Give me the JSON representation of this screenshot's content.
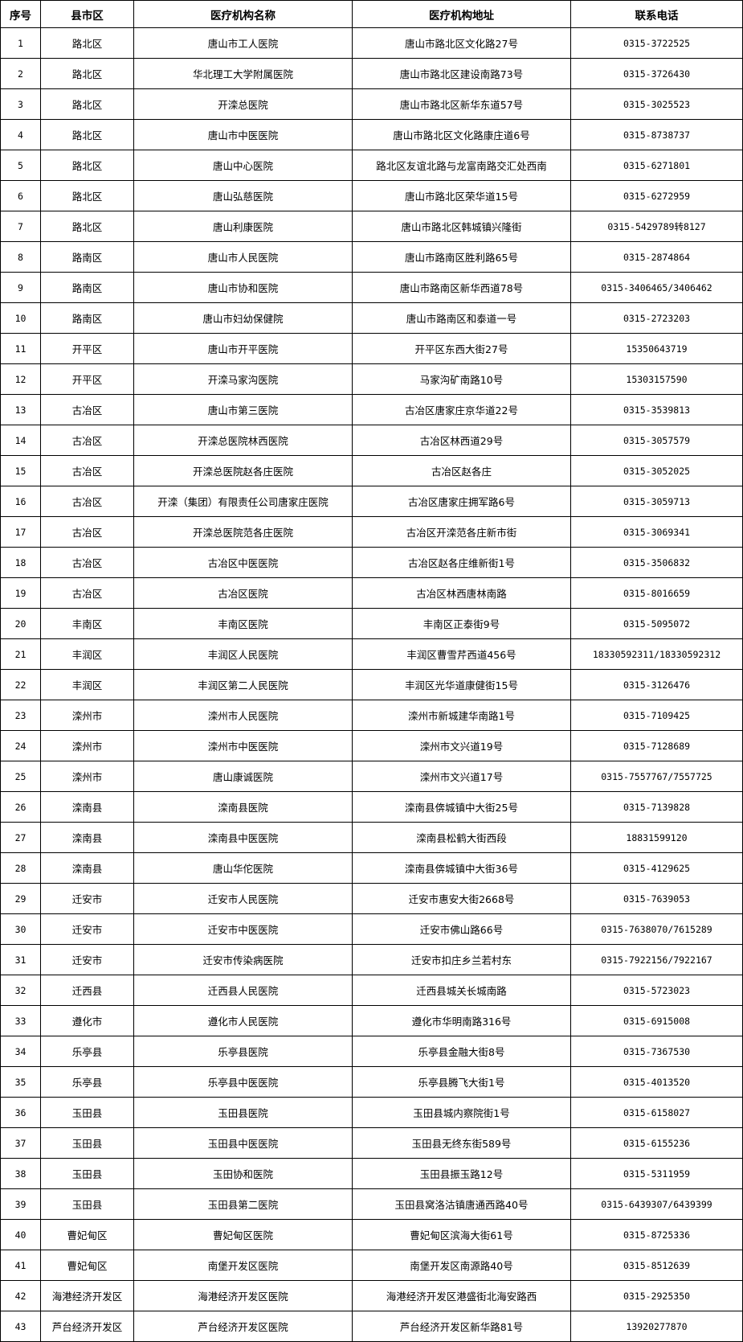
{
  "headers": [
    "序号",
    "县市区",
    "医疗机构名称",
    "医疗机构地址",
    "联系电话"
  ],
  "rows": [
    {
      "no": "1",
      "district": "路北区",
      "name": "唐山市工人医院",
      "address": "唐山市路北区文化路27号",
      "phone": "0315-3722525"
    },
    {
      "no": "2",
      "district": "路北区",
      "name": "华北理工大学附属医院",
      "address": "唐山市路北区建设南路73号",
      "phone": "0315-3726430"
    },
    {
      "no": "3",
      "district": "路北区",
      "name": "开滦总医院",
      "address": "唐山市路北区新华东道57号",
      "phone": "0315-3025523"
    },
    {
      "no": "4",
      "district": "路北区",
      "name": "唐山市中医医院",
      "address": "唐山市路北区文化路康庄道6号",
      "phone": "0315-8738737"
    },
    {
      "no": "5",
      "district": "路北区",
      "name": "唐山中心医院",
      "address": "路北区友谊北路与龙富南路交汇处西南",
      "phone": "0315-6271801"
    },
    {
      "no": "6",
      "district": "路北区",
      "name": "唐山弘慈医院",
      "address": "唐山市路北区荣华道15号",
      "phone": "0315-6272959"
    },
    {
      "no": "7",
      "district": "路北区",
      "name": "唐山利康医院",
      "address": "唐山市路北区韩城镇兴隆街",
      "phone": "0315-5429789转8127"
    },
    {
      "no": "8",
      "district": "路南区",
      "name": "唐山市人民医院",
      "address": "唐山市路南区胜利路65号",
      "phone": "0315-2874864"
    },
    {
      "no": "9",
      "district": "路南区",
      "name": "唐山市协和医院",
      "address": "唐山市路南区新华西道78号",
      "phone": "0315-3406465/3406462"
    },
    {
      "no": "10",
      "district": "路南区",
      "name": "唐山市妇幼保健院",
      "address": "唐山市路南区和泰道一号",
      "phone": "0315-2723203"
    },
    {
      "no": "11",
      "district": "开平区",
      "name": "唐山市开平医院",
      "address": "开平区东西大街27号",
      "phone": "15350643719"
    },
    {
      "no": "12",
      "district": "开平区",
      "name": "开滦马家沟医院",
      "address": "马家沟矿南路10号",
      "phone": "15303157590"
    },
    {
      "no": "13",
      "district": "古冶区",
      "name": "唐山市第三医院",
      "address": "古冶区唐家庄京华道22号",
      "phone": "0315-3539813"
    },
    {
      "no": "14",
      "district": "古冶区",
      "name": "开滦总医院林西医院",
      "address": "古冶区林西道29号",
      "phone": "0315-3057579"
    },
    {
      "no": "15",
      "district": "古冶区",
      "name": "开滦总医院赵各庄医院",
      "address": "古冶区赵各庄",
      "phone": "0315-3052025"
    },
    {
      "no": "16",
      "district": "古冶区",
      "name": "开滦（集团）有限责任公司唐家庄医院",
      "address": "古冶区唐家庄拥军路6号",
      "phone": "0315-3059713"
    },
    {
      "no": "17",
      "district": "古冶区",
      "name": "开滦总医院范各庄医院",
      "address": "古冶区开滦范各庄新市街",
      "phone": "0315-3069341"
    },
    {
      "no": "18",
      "district": "古冶区",
      "name": "古冶区中医医院",
      "address": "古冶区赵各庄维新街1号",
      "phone": "0315-3506832"
    },
    {
      "no": "19",
      "district": "古冶区",
      "name": "古冶区医院",
      "address": "古冶区林西唐林南路",
      "phone": "0315-8016659"
    },
    {
      "no": "20",
      "district": "丰南区",
      "name": "丰南区医院",
      "address": "丰南区正泰街9号",
      "phone": "0315-5095072"
    },
    {
      "no": "21",
      "district": "丰润区",
      "name": "丰润区人民医院",
      "address": "丰润区曹雪芹西道456号",
      "phone": "18330592311/18330592312"
    },
    {
      "no": "22",
      "district": "丰润区",
      "name": "丰润区第二人民医院",
      "address": "丰润区光华道康健街15号",
      "phone": "0315-3126476"
    },
    {
      "no": "23",
      "district": "滦州市",
      "name": "滦州市人民医院",
      "address": "滦州市新城建华南路1号",
      "phone": "0315-7109425"
    },
    {
      "no": "24",
      "district": "滦州市",
      "name": "滦州市中医医院",
      "address": "滦州市文兴道19号",
      "phone": "0315-7128689"
    },
    {
      "no": "25",
      "district": "滦州市",
      "name": "唐山康诚医院",
      "address": "滦州市文兴道17号",
      "phone": "0315-7557767/7557725"
    },
    {
      "no": "26",
      "district": "滦南县",
      "name": "滦南县医院",
      "address": "滦南县倴城镇中大街25号",
      "phone": "0315-7139828"
    },
    {
      "no": "27",
      "district": "滦南县",
      "name": "滦南县中医医院",
      "address": "滦南县松鹤大街西段",
      "phone": "18831599120"
    },
    {
      "no": "28",
      "district": "滦南县",
      "name": "唐山华佗医院",
      "address": "滦南县倴城镇中大街36号",
      "phone": "0315-4129625"
    },
    {
      "no": "29",
      "district": "迁安市",
      "name": "迁安市人民医院",
      "address": "迁安市惠安大街2668号",
      "phone": "0315-7639053"
    },
    {
      "no": "30",
      "district": "迁安市",
      "name": "迁安市中医医院",
      "address": "迁安市佛山路66号",
      "phone": "0315-7638070/7615289"
    },
    {
      "no": "31",
      "district": "迁安市",
      "name": "迁安市传染病医院",
      "address": "迁安市扣庄乡兰若村东",
      "phone": "0315-7922156/7922167"
    },
    {
      "no": "32",
      "district": "迁西县",
      "name": "迁西县人民医院",
      "address": "迁西县城关长城南路",
      "phone": "0315-5723023"
    },
    {
      "no": "33",
      "district": "遵化市",
      "name": "遵化市人民医院",
      "address": "遵化市华明南路316号",
      "phone": "0315-6915008"
    },
    {
      "no": "34",
      "district": "乐亭县",
      "name": "乐亭县医院",
      "address": "乐亭县金融大街8号",
      "phone": "0315-7367530"
    },
    {
      "no": "35",
      "district": "乐亭县",
      "name": "乐亭县中医医院",
      "address": "乐亭县腾飞大街1号",
      "phone": "0315-4013520"
    },
    {
      "no": "36",
      "district": "玉田县",
      "name": "玉田县医院",
      "address": "玉田县城内察院街1号",
      "phone": "0315-6158027"
    },
    {
      "no": "37",
      "district": "玉田县",
      "name": "玉田县中医医院",
      "address": "玉田县无终东街589号",
      "phone": "0315-6155236"
    },
    {
      "no": "38",
      "district": "玉田县",
      "name": "玉田协和医院",
      "address": "玉田县振玉路12号",
      "phone": "0315-5311959"
    },
    {
      "no": "39",
      "district": "玉田县",
      "name": "玉田县第二医院",
      "address": "玉田县窝洛沽镇唐通西路40号",
      "phone": "0315-6439307/6439399"
    },
    {
      "no": "40",
      "district": "曹妃甸区",
      "name": "曹妃甸区医院",
      "address": "曹妃甸区滨海大街61号",
      "phone": "0315-8725336"
    },
    {
      "no": "41",
      "district": "曹妃甸区",
      "name": "南堡开发区医院",
      "address": "南堡开发区南源路40号",
      "phone": "0315-8512639"
    },
    {
      "no": "42",
      "district": "海港经济开发区",
      "name": "海港经济开发区医院",
      "address": "海港经济开发区港盛街北海安路西",
      "phone": "0315-2925350"
    },
    {
      "no": "43",
      "district": "芦台经济开发区",
      "name": "芦台经济开发区医院",
      "address": "芦台经济开发区新华路81号",
      "phone": "13920277870"
    }
  ]
}
